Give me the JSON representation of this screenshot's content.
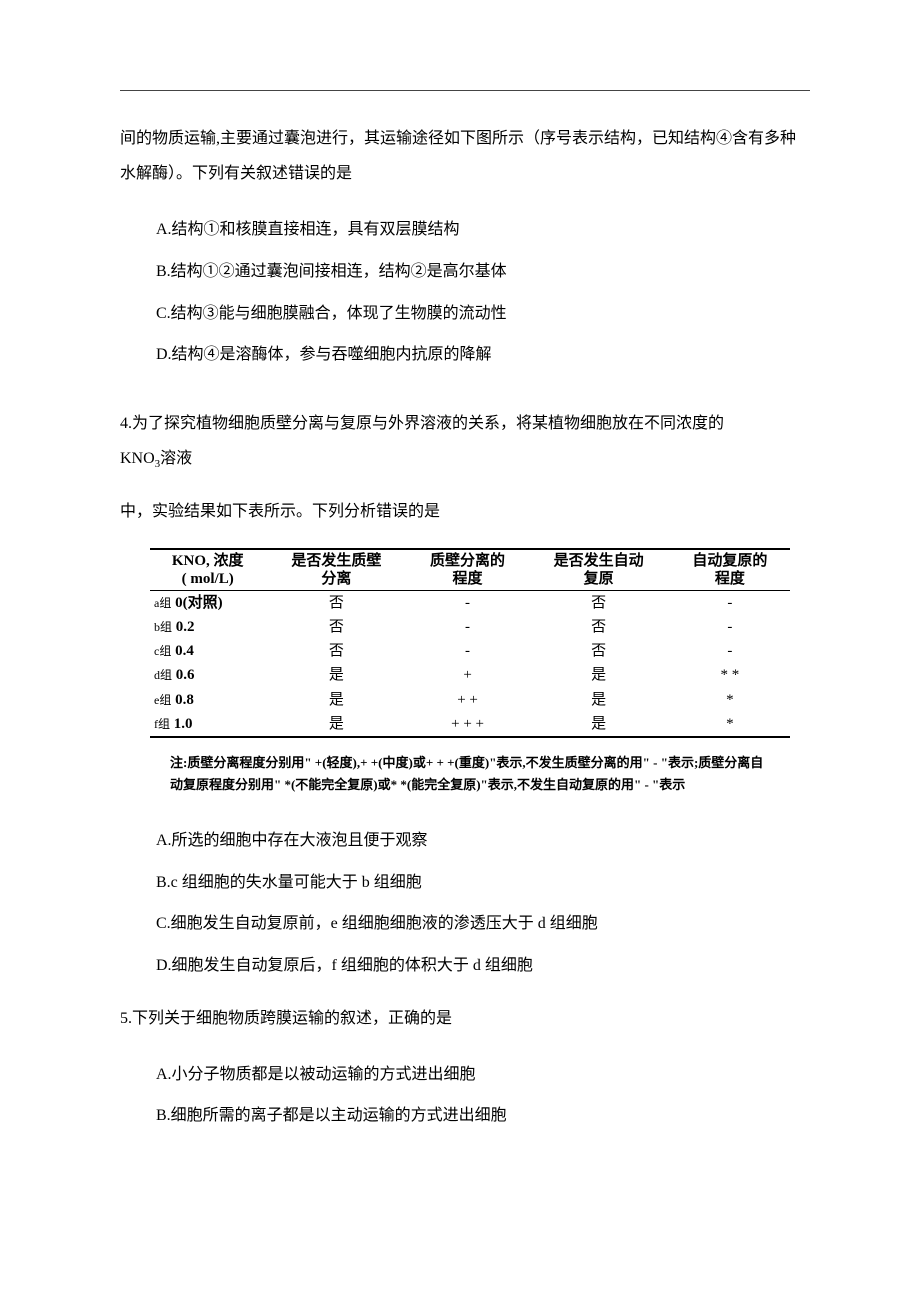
{
  "intro": {
    "p1": "间的物质运输,主要通过囊泡进行，其运输途径如下图所示（序号表示结构，已知结构④含有多种水解酶）。下列有关叙述错误的是",
    "optA": "A.结构①和核膜直接相连，具有双层膜结构",
    "optB": "B.结构①②通过囊泡间接相连，结构②是高尔基体",
    "optC": "C.结构③能与细胞膜融合，体现了生物膜的流动性",
    "optD": "D.结构④是溶酶体，参与吞噬细胞内抗原的降解"
  },
  "q4": {
    "stem1_prefix": "4.为了探究植物细胞质壁分离与复原与外界溶液的关系，将某植物细胞放在不同浓度的",
    "stem1_kno3": "KNO",
    "stem1_sub": "3",
    "stem1_suffix": "溶液",
    "stem2": "中，实验结果如下表所示。下列分析错误的是",
    "table": {
      "headers": {
        "c1a": "KNO, 浓度",
        "c1b": "( mol/L)",
        "c2a": "是否发生质壁",
        "c2b": "分离",
        "c3a": "质壁分离的",
        "c3b": "程度",
        "c4a": "是否发生自动",
        "c4b": "复原",
        "c5a": "自动复原的",
        "c5b": "程度"
      },
      "rows": [
        {
          "g": "a组",
          "v": "0(对照)",
          "a": "否",
          "b": "-",
          "c": "否",
          "d": "-"
        },
        {
          "g": "b组",
          "v": "0.2",
          "a": "否",
          "b": "-",
          "c": "否",
          "d": "-"
        },
        {
          "g": "c组",
          "v": "0.4",
          "a": "否",
          "b": "-",
          "c": "否",
          "d": "-"
        },
        {
          "g": "d组",
          "v": "0.6",
          "a": "是",
          "b": "+",
          "c": "是",
          "d": "* *"
        },
        {
          "g": "e组",
          "v": "0.8",
          "a": "是",
          "b": "+ +",
          "c": "是",
          "d": "*"
        },
        {
          "g": "f组",
          "v": "1.0",
          "a": "是",
          "b": "+ + +",
          "c": "是",
          "d": "*"
        }
      ]
    },
    "note": "注:质壁分离程度分别用\" +(轻度),+ +(中度)或+ + +(重度)\"表示,不发生质壁分离的用\" - \"表示;质壁分离自动复原程度分别用\" *(不能完全复原)或* *(能完全复原)\"表示,不发生自动复原的用\" - \"表示",
    "optA": "A.所选的细胞中存在大液泡且便于观察",
    "optB": "B.c 组细胞的失水量可能大于 b 组细胞",
    "optC": "C.细胞发生自动复原前，e 组细胞细胞液的渗透压大于 d 组细胞",
    "optD": "D.细胞发生自动复原后，f 组细胞的体积大于 d 组细胞"
  },
  "q5": {
    "stem": "5.下列关于细胞物质跨膜运输的叙述，正确的是",
    "optA": "A.小分子物质都是以被动运输的方式进出细胞",
    "optB": "B.细胞所需的离子都是以主动运输的方式进出细胞"
  }
}
